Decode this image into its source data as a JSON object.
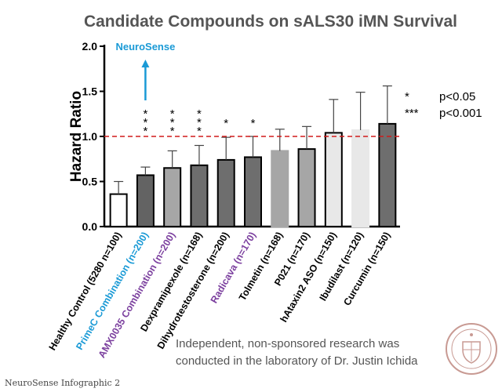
{
  "chart_data": {
    "type": "bar",
    "title": "Candidate Compounds on sALS30 iMN Survival",
    "xlabel": "",
    "ylabel": "Hazard Ratio",
    "ylim": [
      0,
      2.0
    ],
    "yticks": [
      "0.0",
      "0.5",
      "1.0",
      "1.5",
      "2.0"
    ],
    "reference_line": 1.0,
    "categories": [
      "Healthy Control (5280 n=100)",
      "PrimeC Combination (n=200)",
      "AMX0035 Combination (n=200)",
      "Dexpramipexole (n=168)",
      "Dihydrotestosterone (n=200)",
      "Radicava (n=170)",
      "Tolmetin (n=168)",
      "P021 (n=170)",
      "hAtaxin2 ASO (n=150)",
      "Ibudilast (n=120)",
      "Curcumin (n=150)"
    ],
    "values": [
      0.36,
      0.57,
      0.65,
      0.68,
      0.74,
      0.77,
      0.84,
      0.86,
      1.04,
      1.07,
      1.14
    ],
    "error_upper": [
      0.5,
      0.66,
      0.84,
      0.9,
      0.99,
      1.0,
      1.08,
      1.11,
      1.41,
      1.49,
      1.56
    ],
    "significance": [
      "",
      "***",
      "***",
      "***",
      "*",
      "*",
      "",
      "",
      "",
      "",
      ""
    ],
    "bar_colors": [
      "#ffffff",
      "#636363",
      "#a6a6a6",
      "#6e6e6e",
      "#6e6e6e",
      "#6e6e6e",
      "#a6a6a6",
      "#a6a6a6",
      "#e8e8e8",
      "#e8e8e8",
      "#6e6e6e"
    ],
    "bar_edge": [
      "#000000",
      "#000000",
      "#000000",
      "#000000",
      "#000000",
      "#000000",
      "#a6a6a6",
      "#000000",
      "#000000",
      "#e8e8e8",
      "#000000"
    ],
    "label_colors": [
      "#000000",
      "#1a9ad6",
      "#7b3f9e",
      "#000000",
      "#000000",
      "#7b3f9e",
      "#000000",
      "#000000",
      "#000000",
      "#000000",
      "#000000"
    ],
    "annotation": {
      "text": "NeuroSense",
      "color": "#1a9ad6"
    },
    "legend": [
      {
        "symbol": "*",
        "text": "p<0.05"
      },
      {
        "symbol": "***",
        "text": "p<0.001"
      }
    ]
  },
  "disclaimer": "Independent, non-sponsored research was conducted in the laboratory of Dr. Justin Ichida",
  "footnote": "NeuroSense Infographic 2"
}
